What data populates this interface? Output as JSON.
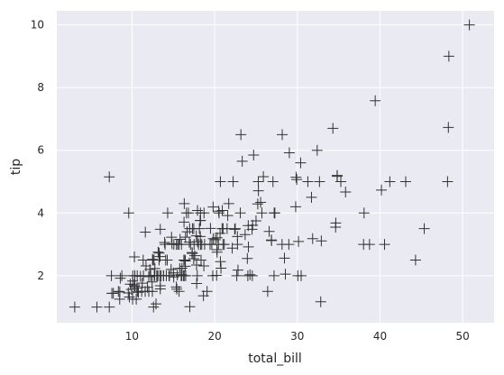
{
  "chart_data": {
    "type": "scatter",
    "title": "",
    "xlabel": "total_bill",
    "ylabel": "tip",
    "xlim": [
      0.9,
      53.8
    ],
    "ylim": [
      0.5,
      10.45
    ],
    "xticks": [
      10,
      20,
      30,
      40,
      50
    ],
    "yticks": [
      2,
      4,
      6,
      8,
      10
    ],
    "grid": true,
    "marker": "plus",
    "colors": {
      "plot_background": "#eaeaf2",
      "grid": "#ffffff",
      "marker": "#333333",
      "text": "#262626"
    },
    "points": [
      [
        16.99,
        1.01
      ],
      [
        10.34,
        1.66
      ],
      [
        21.01,
        3.5
      ],
      [
        23.68,
        3.31
      ],
      [
        24.59,
        3.61
      ],
      [
        25.29,
        4.71
      ],
      [
        8.77,
        2.0
      ],
      [
        26.88,
        3.12
      ],
      [
        15.04,
        1.96
      ],
      [
        14.78,
        3.23
      ],
      [
        10.27,
        1.71
      ],
      [
        35.26,
        5.0
      ],
      [
        15.42,
        1.57
      ],
      [
        18.43,
        3.0
      ],
      [
        14.83,
        3.02
      ],
      [
        21.58,
        3.92
      ],
      [
        10.33,
        1.67
      ],
      [
        16.29,
        3.71
      ],
      [
        16.97,
        3.5
      ],
      [
        20.65,
        3.35
      ],
      [
        17.92,
        4.08
      ],
      [
        20.29,
        2.75
      ],
      [
        15.77,
        2.23
      ],
      [
        39.42,
        7.58
      ],
      [
        19.82,
        3.18
      ],
      [
        17.81,
        2.34
      ],
      [
        13.37,
        2.0
      ],
      [
        12.69,
        2.0
      ],
      [
        21.7,
        4.3
      ],
      [
        19.65,
        3.0
      ],
      [
        9.55,
        1.45
      ],
      [
        18.35,
        2.5
      ],
      [
        15.06,
        3.0
      ],
      [
        20.69,
        2.45
      ],
      [
        17.78,
        3.27
      ],
      [
        24.06,
        3.6
      ],
      [
        16.31,
        2.0
      ],
      [
        16.93,
        3.07
      ],
      [
        18.69,
        2.31
      ],
      [
        31.27,
        5.0
      ],
      [
        16.04,
        2.24
      ],
      [
        17.46,
        2.54
      ],
      [
        13.94,
        3.06
      ],
      [
        9.68,
        1.32
      ],
      [
        30.4,
        5.6
      ],
      [
        18.29,
        3.0
      ],
      [
        22.23,
        5.0
      ],
      [
        32.4,
        6.0
      ],
      [
        28.55,
        2.05
      ],
      [
        18.04,
        3.0
      ],
      [
        12.54,
        2.5
      ],
      [
        10.29,
        2.6
      ],
      [
        34.81,
        5.2
      ],
      [
        9.94,
        1.56
      ],
      [
        25.56,
        4.34
      ],
      [
        19.49,
        3.51
      ],
      [
        38.01,
        3.0
      ],
      [
        26.41,
        1.5
      ],
      [
        11.24,
        1.76
      ],
      [
        48.27,
        6.73
      ],
      [
        20.29,
        3.21
      ],
      [
        13.81,
        2.0
      ],
      [
        11.02,
        1.98
      ],
      [
        18.29,
        3.76
      ],
      [
        17.59,
        2.64
      ],
      [
        20.08,
        3.15
      ],
      [
        16.45,
        2.47
      ],
      [
        3.07,
        1.0
      ],
      [
        20.23,
        2.01
      ],
      [
        15.01,
        2.09
      ],
      [
        12.02,
        1.97
      ],
      [
        17.07,
        3.0
      ],
      [
        26.86,
        3.14
      ],
      [
        25.28,
        5.0
      ],
      [
        14.73,
        2.2
      ],
      [
        10.51,
        1.25
      ],
      [
        17.92,
        3.08
      ],
      [
        27.2,
        4.0
      ],
      [
        22.76,
        3.0
      ],
      [
        17.29,
        2.71
      ],
      [
        19.44,
        3.0
      ],
      [
        16.66,
        3.4
      ],
      [
        10.07,
        1.83
      ],
      [
        32.68,
        5.0
      ],
      [
        15.98,
        2.03
      ],
      [
        34.83,
        5.17
      ],
      [
        13.03,
        2.0
      ],
      [
        18.28,
        4.0
      ],
      [
        24.71,
        5.85
      ],
      [
        21.16,
        3.0
      ],
      [
        28.97,
        3.0
      ],
      [
        22.49,
        3.5
      ],
      [
        5.75,
        1.0
      ],
      [
        16.32,
        4.3
      ],
      [
        22.75,
        3.25
      ],
      [
        40.17,
        4.73
      ],
      [
        27.28,
        4.0
      ],
      [
        12.03,
        1.5
      ],
      [
        21.01,
        3.0
      ],
      [
        12.46,
        1.5
      ],
      [
        11.35,
        2.5
      ],
      [
        15.38,
        3.0
      ],
      [
        44.3,
        2.5
      ],
      [
        22.42,
        3.48
      ],
      [
        20.92,
        4.08
      ],
      [
        15.36,
        1.64
      ],
      [
        20.49,
        4.06
      ],
      [
        25.21,
        4.29
      ],
      [
        18.24,
        3.76
      ],
      [
        14.31,
        4.0
      ],
      [
        14.0,
        3.0
      ],
      [
        7.25,
        1.0
      ],
      [
        38.07,
        4.0
      ],
      [
        23.95,
        2.55
      ],
      [
        25.71,
        4.0
      ],
      [
        17.31,
        3.5
      ],
      [
        29.93,
        5.07
      ],
      [
        10.65,
        1.5
      ],
      [
        12.43,
        1.8
      ],
      [
        24.08,
        2.92
      ],
      [
        11.69,
        2.31
      ],
      [
        13.42,
        1.68
      ],
      [
        14.26,
        2.5
      ],
      [
        15.95,
        2.0
      ],
      [
        12.48,
        2.52
      ],
      [
        29.8,
        4.2
      ],
      [
        8.52,
        1.48
      ],
      [
        14.52,
        2.0
      ],
      [
        11.38,
        2.0
      ],
      [
        22.82,
        2.18
      ],
      [
        19.08,
        1.5
      ],
      [
        20.27,
        2.83
      ],
      [
        11.17,
        1.5
      ],
      [
        12.26,
        2.0
      ],
      [
        18.26,
        3.25
      ],
      [
        8.51,
        1.25
      ],
      [
        10.33,
        2.0
      ],
      [
        14.15,
        2.0
      ],
      [
        16.0,
        2.0
      ],
      [
        13.16,
        2.75
      ],
      [
        17.47,
        3.5
      ],
      [
        34.3,
        6.7
      ],
      [
        41.19,
        5.0
      ],
      [
        27.05,
        5.0
      ],
      [
        16.43,
        2.3
      ],
      [
        8.35,
        1.5
      ],
      [
        18.64,
        1.36
      ],
      [
        11.87,
        1.63
      ],
      [
        9.78,
        1.73
      ],
      [
        7.51,
        2.0
      ],
      [
        14.07,
        2.5
      ],
      [
        13.13,
        2.0
      ],
      [
        17.26,
        2.74
      ],
      [
        24.55,
        2.0
      ],
      [
        19.77,
        2.0
      ],
      [
        29.85,
        5.14
      ],
      [
        48.17,
        5.0
      ],
      [
        25.0,
        3.75
      ],
      [
        13.39,
        2.61
      ],
      [
        16.49,
        2.0
      ],
      [
        21.5,
        3.5
      ],
      [
        12.66,
        2.5
      ],
      [
        16.21,
        2.0
      ],
      [
        13.81,
        2.0
      ],
      [
        17.51,
        3.0
      ],
      [
        24.52,
        3.48
      ],
      [
        20.76,
        2.24
      ],
      [
        31.71,
        4.5
      ],
      [
        10.59,
        1.61
      ],
      [
        10.63,
        2.0
      ],
      [
        50.81,
        10.0
      ],
      [
        15.81,
        3.16
      ],
      [
        7.25,
        5.15
      ],
      [
        31.85,
        3.18
      ],
      [
        16.82,
        4.0
      ],
      [
        32.9,
        3.11
      ],
      [
        17.89,
        2.0
      ],
      [
        14.48,
        2.0
      ],
      [
        9.6,
        4.0
      ],
      [
        34.63,
        3.55
      ],
      [
        34.65,
        3.68
      ],
      [
        23.33,
        5.65
      ],
      [
        45.35,
        3.5
      ],
      [
        23.17,
        6.5
      ],
      [
        40.55,
        3.0
      ],
      [
        20.69,
        5.0
      ],
      [
        20.9,
        3.5
      ],
      [
        30.46,
        2.0
      ],
      [
        18.15,
        3.5
      ],
      [
        23.1,
        4.0
      ],
      [
        15.69,
        1.5
      ],
      [
        19.81,
        4.19
      ],
      [
        28.44,
        2.56
      ],
      [
        15.48,
        2.02
      ],
      [
        16.58,
        4.0
      ],
      [
        7.56,
        1.44
      ],
      [
        10.34,
        2.0
      ],
      [
        43.11,
        5.0
      ],
      [
        13.0,
        2.0
      ],
      [
        13.51,
        2.0
      ],
      [
        18.71,
        4.0
      ],
      [
        12.74,
        2.01
      ],
      [
        13.0,
        2.0
      ],
      [
        16.4,
        2.5
      ],
      [
        20.53,
        4.0
      ],
      [
        16.47,
        3.23
      ],
      [
        26.59,
        3.41
      ],
      [
        38.73,
        3.0
      ],
      [
        24.27,
        2.03
      ],
      [
        12.76,
        2.23
      ],
      [
        30.06,
        2.0
      ],
      [
        25.89,
        5.16
      ],
      [
        48.33,
        9.0
      ],
      [
        13.27,
        2.5
      ],
      [
        28.17,
        6.5
      ],
      [
        12.9,
        1.1
      ],
      [
        28.15,
        3.0
      ],
      [
        11.59,
        1.5
      ],
      [
        7.74,
        1.44
      ],
      [
        30.14,
        3.09
      ],
      [
        12.16,
        2.2
      ],
      [
        13.42,
        3.48
      ],
      [
        8.58,
        1.92
      ],
      [
        15.98,
        3.0
      ],
      [
        13.42,
        1.58
      ],
      [
        16.27,
        2.5
      ],
      [
        10.09,
        2.0
      ],
      [
        20.45,
        3.0
      ],
      [
        13.28,
        2.72
      ],
      [
        22.12,
        2.88
      ],
      [
        24.01,
        2.0
      ],
      [
        15.69,
        3.0
      ],
      [
        11.61,
        3.39
      ],
      [
        10.77,
        1.47
      ],
      [
        15.53,
        3.0
      ],
      [
        10.07,
        1.25
      ],
      [
        12.6,
        1.0
      ],
      [
        32.83,
        1.17
      ],
      [
        35.83,
        4.67
      ],
      [
        29.03,
        5.92
      ],
      [
        27.18,
        2.0
      ],
      [
        22.67,
        2.0
      ],
      [
        17.82,
        1.75
      ],
      [
        18.78,
        3.0
      ]
    ]
  }
}
